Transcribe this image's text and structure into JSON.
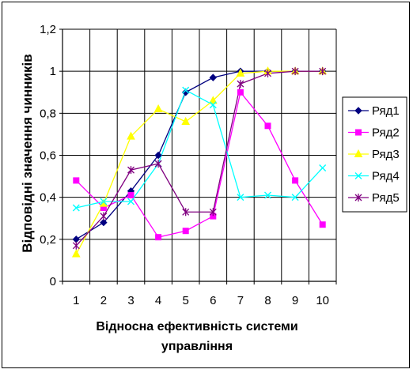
{
  "chart_data": {
    "type": "line",
    "ylabel": "Відповідні значення чинників",
    "xlabel_lines": [
      "Відносна ефективність системи",
      "управління"
    ],
    "x": [
      1,
      2,
      3,
      4,
      5,
      6,
      7,
      8,
      9,
      10
    ],
    "ylim": [
      0,
      1.2
    ],
    "yticks": [
      0,
      0.2,
      0.4,
      0.6,
      0.8,
      1,
      1.2
    ],
    "ytick_labels": [
      "0",
      "0,2",
      "0,4",
      "0,6",
      "0,8",
      "1",
      "1,2"
    ],
    "grid": true,
    "legend_position": "right",
    "series": [
      {
        "name": "Ряд1",
        "color": "#000080",
        "marker": "diamond",
        "values": [
          0.2,
          0.28,
          0.43,
          0.6,
          0.9,
          0.97,
          1.0,
          1.0,
          1.0,
          1.0
        ]
      },
      {
        "name": "Ряд2",
        "color": "#FF00FF",
        "marker": "square",
        "values": [
          0.48,
          0.35,
          0.41,
          0.21,
          0.24,
          0.31,
          0.9,
          0.74,
          0.48,
          0.27
        ]
      },
      {
        "name": "Ряд3",
        "color": "#FFFF00",
        "marker": "triangle",
        "values": [
          0.13,
          0.37,
          0.69,
          0.82,
          0.76,
          0.86,
          0.99,
          1.0,
          1.0,
          1.0
        ]
      },
      {
        "name": "Ряд4",
        "color": "#00FFFF",
        "marker": "x",
        "values": [
          0.35,
          0.38,
          0.38,
          0.56,
          0.91,
          0.84,
          0.4,
          0.41,
          0.4,
          0.54
        ]
      },
      {
        "name": "Ряд5",
        "color": "#800080",
        "marker": "star",
        "values": [
          0.17,
          0.31,
          0.53,
          0.56,
          0.33,
          0.33,
          0.94,
          0.99,
          1.0,
          1.0
        ]
      }
    ]
  }
}
